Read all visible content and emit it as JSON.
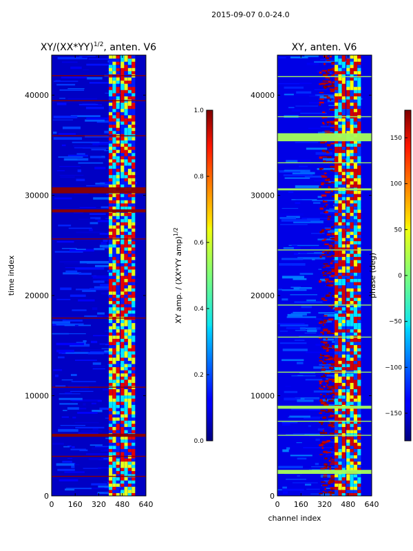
{
  "figure": {
    "suptitle": "2015-09-07 0.0-24.0",
    "shared_xlabel": "channel index"
  },
  "chart_data": [
    {
      "type": "heatmap",
      "title_main": "XY/(XX*YY)",
      "title_sup": "1/2",
      "title_tail": ", anten. V6",
      "xlabel": "",
      "ylabel": "time index",
      "xlim": [
        0,
        640
      ],
      "ylim": [
        0,
        44000
      ],
      "xticks": [
        0,
        160,
        320,
        480,
        640
      ],
      "yticks": [
        0,
        10000,
        20000,
        30000,
        40000
      ],
      "colorbar": {
        "label_main": "XY amp. / (XX*YY amp)",
        "label_sup": "1/2",
        "range": [
          0.0,
          1.0
        ],
        "ticks": [
          0.0,
          0.2,
          0.4,
          0.6,
          0.8,
          1.0
        ],
        "tick_labels": [
          "0.0",
          "0.2",
          "0.4",
          "0.6",
          "0.8",
          "1.0"
        ]
      },
      "colormap": "jet"
    },
    {
      "type": "heatmap",
      "title_main": "XY, anten. V6",
      "xlabel": "channel index",
      "ylabel": "",
      "xlim": [
        0,
        640
      ],
      "ylim": [
        0,
        44000
      ],
      "xticks": [
        0,
        160,
        320,
        480,
        640
      ],
      "yticks": [
        0,
        10000,
        20000,
        30000,
        40000
      ],
      "colorbar": {
        "label_main": "phase (deg)",
        "range": [
          -180,
          180
        ],
        "ticks": [
          -150,
          -100,
          -50,
          0,
          50,
          100,
          150
        ],
        "tick_labels": [
          "−150",
          "−100",
          "−50",
          "0",
          "50",
          "100",
          "150"
        ]
      },
      "colormap": "jet"
    }
  ]
}
